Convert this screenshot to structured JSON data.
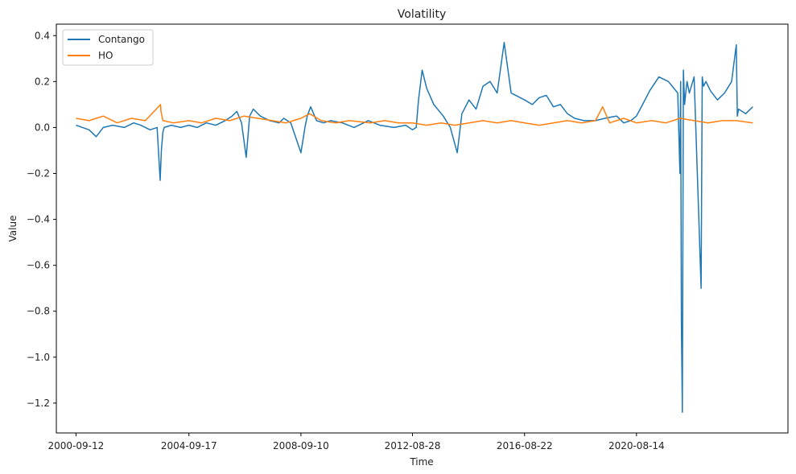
{
  "chart_data": {
    "type": "line",
    "title": "Volatility",
    "xlabel": "Time",
    "ylabel": "Value",
    "xlim": [
      "2000-01-01",
      "2026-01-01"
    ],
    "ylim": [
      -1.33,
      0.45
    ],
    "x_ticks": [
      "2000-09-12",
      "2004-09-17",
      "2008-09-10",
      "2012-08-28",
      "2016-08-22",
      "2020-08-14"
    ],
    "y_ticks": [
      0.4,
      0.2,
      0.0,
      -0.2,
      -0.4,
      -0.6,
      -0.8,
      -1.0,
      -1.2
    ],
    "y_tick_labels": [
      "0.4",
      "0.2",
      "0.0",
      "−0.2",
      "−0.4",
      "−0.6",
      "−0.8",
      "−1.0",
      "−1.2"
    ],
    "legend_position": "upper-left",
    "grid": false,
    "series": [
      {
        "name": "Contango",
        "color": "#1f77b4",
        "x": [
          "2000-09-12",
          "2001-03-01",
          "2001-06-01",
          "2001-09-01",
          "2002-01-01",
          "2002-06-01",
          "2002-10-01",
          "2003-01-01",
          "2003-05-01",
          "2003-08-01",
          "2003-09-10",
          "2003-09-25",
          "2003-10-15",
          "2003-11-01",
          "2004-02-01",
          "2004-06-01",
          "2004-09-17",
          "2005-01-01",
          "2005-05-01",
          "2005-09-01",
          "2006-01-01",
          "2006-04-01",
          "2006-06-01",
          "2006-08-01",
          "2006-10-01",
          "2006-11-15",
          "2007-01-01",
          "2007-04-01",
          "2007-08-01",
          "2007-12-01",
          "2008-02-01",
          "2008-05-01",
          "2008-09-10",
          "2008-11-01",
          "2008-12-01",
          "2009-01-15",
          "2009-04-01",
          "2009-07-01",
          "2009-10-01",
          "2010-03-01",
          "2010-08-01",
          "2011-02-01",
          "2011-07-01",
          "2012-01-01",
          "2012-06-01",
          "2012-08-28",
          "2012-10-15",
          "2012-11-15",
          "2013-01-01",
          "2013-03-01",
          "2013-06-01",
          "2013-10-01",
          "2014-01-01",
          "2014-04-01",
          "2014-06-01",
          "2014-09-01",
          "2014-12-01",
          "2015-03-01",
          "2015-06-01",
          "2015-09-01",
          "2015-12-01",
          "2016-03-01",
          "2016-08-22",
          "2016-12-01",
          "2017-03-01",
          "2017-06-01",
          "2017-09-01",
          "2017-12-01",
          "2018-03-01",
          "2018-06-01",
          "2018-10-01",
          "2019-03-01",
          "2019-07-01",
          "2019-12-01",
          "2020-03-01",
          "2020-06-01",
          "2020-08-14",
          "2020-11-01",
          "2021-02-01",
          "2021-06-01",
          "2021-10-01",
          "2022-02-01",
          "2022-03-01",
          "2022-03-10",
          "2022-03-20",
          "2022-04-01",
          "2022-04-15",
          "2022-05-01",
          "2022-05-15",
          "2022-06-01",
          "2022-07-01",
          "2022-09-01",
          "2022-11-01",
          "2022-12-01",
          "2022-12-15",
          "2023-01-01",
          "2023-02-01",
          "2023-04-01",
          "2023-07-01",
          "2023-10-01",
          "2024-01-01",
          "2024-03-01",
          "2024-03-15",
          "2024-04-01",
          "2024-07-01",
          "2024-10-01"
        ],
        "values": [
          0.01,
          -0.01,
          -0.04,
          0.0,
          0.01,
          0.0,
          0.02,
          0.01,
          -0.01,
          0.0,
          -0.23,
          -0.1,
          -0.02,
          0.0,
          0.01,
          0.0,
          0.01,
          0.0,
          0.02,
          0.01,
          0.03,
          0.05,
          0.07,
          0.02,
          -0.13,
          0.05,
          0.08,
          0.05,
          0.03,
          0.02,
          0.04,
          0.02,
          -0.11,
          0.0,
          0.05,
          0.09,
          0.03,
          0.02,
          0.03,
          0.02,
          0.0,
          0.03,
          0.01,
          0.0,
          0.01,
          -0.01,
          0.0,
          0.12,
          0.25,
          0.17,
          0.1,
          0.05,
          0.0,
          -0.11,
          0.06,
          0.12,
          0.08,
          0.18,
          0.2,
          0.15,
          0.37,
          0.15,
          0.12,
          0.1,
          0.13,
          0.14,
          0.09,
          0.1,
          0.06,
          0.04,
          0.03,
          0.03,
          0.04,
          0.05,
          0.02,
          0.03,
          0.05,
          0.1,
          0.16,
          0.22,
          0.2,
          0.15,
          -0.2,
          0.2,
          -0.85,
          -1.24,
          0.25,
          0.1,
          0.15,
          0.2,
          0.15,
          0.22,
          -0.4,
          -0.7,
          0.22,
          0.18,
          0.2,
          0.16,
          0.12,
          0.15,
          0.2,
          0.36,
          0.05,
          0.08,
          0.06,
          0.09
        ]
      },
      {
        "name": "HO",
        "color": "#ff7f0e",
        "x": [
          "2000-09-12",
          "2001-03-01",
          "2001-09-01",
          "2002-03-01",
          "2002-09-01",
          "2003-03-01",
          "2003-09-15",
          "2003-09-20",
          "2003-10-15",
          "2004-03-01",
          "2004-09-17",
          "2005-03-01",
          "2005-09-01",
          "2006-03-01",
          "2006-09-01",
          "2007-03-01",
          "2007-09-01",
          "2008-03-01",
          "2008-09-10",
          "2009-01-01",
          "2009-06-01",
          "2009-12-01",
          "2010-06-01",
          "2011-03-01",
          "2011-09-01",
          "2012-03-01",
          "2012-08-28",
          "2013-03-01",
          "2013-09-01",
          "2014-03-01",
          "2014-09-01",
          "2015-03-01",
          "2015-09-01",
          "2016-03-01",
          "2016-08-22",
          "2017-03-01",
          "2017-09-01",
          "2018-03-01",
          "2018-09-01",
          "2019-03-01",
          "2019-06-01",
          "2019-09-01",
          "2020-03-01",
          "2020-08-14",
          "2021-03-01",
          "2021-09-01",
          "2022-03-01",
          "2022-09-01",
          "2023-03-01",
          "2023-09-01",
          "2024-03-01",
          "2024-10-01"
        ],
        "values": [
          0.04,
          0.03,
          0.05,
          0.02,
          0.04,
          0.03,
          0.1,
          0.07,
          0.03,
          0.02,
          0.03,
          0.02,
          0.04,
          0.03,
          0.05,
          0.04,
          0.03,
          0.02,
          0.04,
          0.06,
          0.03,
          0.02,
          0.03,
          0.02,
          0.03,
          0.02,
          0.02,
          0.01,
          0.02,
          0.01,
          0.02,
          0.03,
          0.02,
          0.03,
          0.02,
          0.01,
          0.02,
          0.03,
          0.02,
          0.03,
          0.09,
          0.02,
          0.04,
          0.02,
          0.03,
          0.02,
          0.04,
          0.03,
          0.02,
          0.03,
          0.03,
          0.02
        ]
      }
    ]
  }
}
